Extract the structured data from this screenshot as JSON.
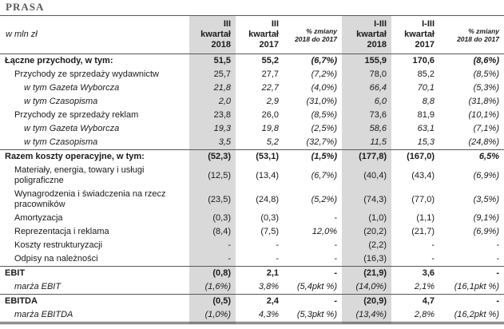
{
  "title": "PRASA",
  "colors": {
    "highlight_column": "#d9d9d9",
    "border": "#595959",
    "title_text": "#595959"
  },
  "table": {
    "unit_label": "w mln zł",
    "columns": [
      {
        "label": "III\nkwartał\n2018",
        "highlight": true,
        "pct": false
      },
      {
        "label": "III\nkwartał\n2017",
        "highlight": false,
        "pct": false
      },
      {
        "label": "% zmiany\n2018 do 2017",
        "highlight": false,
        "pct": true
      },
      {
        "label": "I-III\nkwartał\n2018",
        "highlight": true,
        "pct": false
      },
      {
        "label": "I-III\nkwartał\n2017",
        "highlight": false,
        "pct": false
      },
      {
        "label": "% zmiany\n2018 do 2017",
        "highlight": false,
        "pct": true
      }
    ],
    "rows": [
      {
        "label": "Łączne przychody, w tym:",
        "bold": true,
        "indent": 0,
        "values": [
          "51,5",
          "55,2",
          "(6,7%)",
          "155,9",
          "170,6",
          "(8,6%)"
        ]
      },
      {
        "label": "Przychody ze sprzedaży wydawnictw",
        "indent": 1,
        "values": [
          "25,7",
          "27,7",
          "(7,2%)",
          "78,0",
          "85,2",
          "(8,5%)"
        ]
      },
      {
        "label": "w tym Gazeta Wyborcza",
        "indent": 2,
        "italic": true,
        "values": [
          "21,8",
          "22,7",
          "(4,0%)",
          "66,4",
          "70,1",
          "(5,3%)"
        ]
      },
      {
        "label": "w tym Czasopisma",
        "indent": 2,
        "italic": true,
        "values": [
          "2,0",
          "2,9",
          "(31,0%)",
          "6,0",
          "8,8",
          "(31,8%)"
        ]
      },
      {
        "label": "Przychody ze sprzedaży reklam",
        "indent": 1,
        "values": [
          "23,8",
          "26,0",
          "(8,5%)",
          "73,6",
          "81,9",
          "(10,1%)"
        ]
      },
      {
        "label": "w tym Gazeta Wyborcza",
        "indent": 2,
        "italic": true,
        "values": [
          "19,3",
          "19,8",
          "(2,5%)",
          "58,6",
          "63,1",
          "(7,1%)"
        ]
      },
      {
        "label": "w tym Czasopisma",
        "indent": 2,
        "italic": true,
        "values": [
          "3,5",
          "5,2",
          "(32,7%)",
          "11,5",
          "15,3",
          "(24,8%)"
        ]
      },
      {
        "label": "Razem koszty operacyjne, w tym:",
        "bold": true,
        "indent": 0,
        "sep": true,
        "values": [
          "(52,3)",
          "(53,1)",
          "(1,5%)",
          "(177,8)",
          "(167,0)",
          "6,5%"
        ]
      },
      {
        "label": "Materiały, energia, towary i usługi poligraficzne",
        "indent": 1,
        "values": [
          "(12,5)",
          "(13,4)",
          "(6,7%)",
          "(40,4)",
          "(43,4)",
          "(6,9%)"
        ]
      },
      {
        "label": "Wynagrodzenia i świadczenia na rzecz pracowników",
        "indent": 1,
        "values": [
          "(23,5)",
          "(24,8)",
          "(5,2%)",
          "(74,3)",
          "(77,0)",
          "(3,5%)"
        ]
      },
      {
        "label": "Amortyzacja",
        "indent": 1,
        "values": [
          "(0,3)",
          "(0,3)",
          "-",
          "(1,0)",
          "(1,1)",
          "(9,1%)"
        ]
      },
      {
        "label": "Reprezentacja i reklama",
        "indent": 1,
        "values": [
          "(8,4)",
          "(7,5)",
          "12,0%",
          "(20,2)",
          "(21,7)",
          "(6,9%)"
        ]
      },
      {
        "label": "Koszty restrukturyzacji",
        "indent": 1,
        "values": [
          "-",
          "-",
          "-",
          "(2,2)",
          "-",
          "-"
        ]
      },
      {
        "label": "Odpisy na należności",
        "indent": 1,
        "values": [
          "-",
          "-",
          "-",
          "(16,3)",
          "-",
          "-"
        ]
      },
      {
        "label": "EBIT",
        "bold": true,
        "indent": 0,
        "sep": true,
        "values": [
          "(0,8)",
          "2,1",
          "-",
          "(21,9)",
          "3,6",
          "-"
        ]
      },
      {
        "label": "marża EBIT",
        "indent": 1,
        "italic": true,
        "values": [
          "(1,6%)",
          "3,8%",
          "(5,4pkt %)",
          "(14,0%)",
          "2,1%",
          "(16,1pkt %)"
        ]
      },
      {
        "label": "EBITDA",
        "bold": true,
        "indent": 0,
        "sep": true,
        "values": [
          "(0,5)",
          "2,4",
          "-",
          "(20,9)",
          "4,7",
          "-"
        ]
      },
      {
        "label": "marża EBITDA",
        "indent": 1,
        "italic": true,
        "values": [
          "(1,0%)",
          "4,3%",
          "(5,3pkt %)",
          "(13,4%)",
          "2,8%",
          "(16,2pkt %)"
        ]
      }
    ]
  }
}
